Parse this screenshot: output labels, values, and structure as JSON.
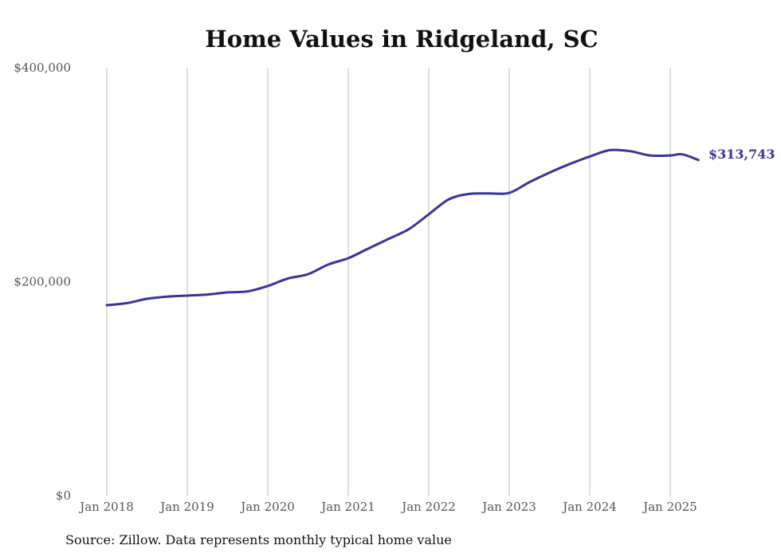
{
  "chart_data": {
    "type": "line",
    "title": "Home Values in Ridgeland, SC",
    "xlabel": "",
    "ylabel": "",
    "ylim": [
      0,
      400000
    ],
    "yticks": [
      {
        "value": 0,
        "label": "$0"
      },
      {
        "value": 200000,
        "label": "$200,000"
      },
      {
        "value": 400000,
        "label": "$400,000"
      }
    ],
    "xticks": [
      {
        "value": 2018.0,
        "label": "Jan 2018"
      },
      {
        "value": 2019.0,
        "label": "Jan 2019"
      },
      {
        "value": 2020.0,
        "label": "Jan 2020"
      },
      {
        "value": 2021.0,
        "label": "Jan 2021"
      },
      {
        "value": 2022.0,
        "label": "Jan 2022"
      },
      {
        "value": 2023.0,
        "label": "Jan 2023"
      },
      {
        "value": 2024.0,
        "label": "Jan 2024"
      },
      {
        "value": 2025.0,
        "label": "Jan 2025"
      }
    ],
    "xlim": [
      2018.0,
      2025.4
    ],
    "grid": "vertical",
    "line_color": "#3b3494",
    "series": [
      {
        "points": [
          [
            2018.0,
            178000
          ],
          [
            2018.25,
            180000
          ],
          [
            2018.5,
            184000
          ],
          [
            2018.75,
            186000
          ],
          [
            2019.0,
            187000
          ],
          [
            2019.25,
            188000
          ],
          [
            2019.5,
            190000
          ],
          [
            2019.75,
            191000
          ],
          [
            2020.0,
            196000
          ],
          [
            2020.25,
            203000
          ],
          [
            2020.5,
            207000
          ],
          [
            2020.75,
            216000
          ],
          [
            2021.0,
            222000
          ],
          [
            2021.25,
            231000
          ],
          [
            2021.5,
            240000
          ],
          [
            2021.75,
            249000
          ],
          [
            2022.0,
            263000
          ],
          [
            2022.25,
            277000
          ],
          [
            2022.5,
            282000
          ],
          [
            2022.75,
            282500
          ],
          [
            2023.0,
            283000
          ],
          [
            2023.25,
            293000
          ],
          [
            2023.5,
            302000
          ],
          [
            2023.75,
            310000
          ],
          [
            2024.0,
            317000
          ],
          [
            2024.25,
            323000
          ],
          [
            2024.5,
            322000
          ],
          [
            2024.75,
            318000
          ],
          [
            2025.0,
            318000
          ],
          [
            2025.15,
            319000
          ],
          [
            2025.35,
            313743
          ]
        ]
      }
    ],
    "end_label": "$313,743",
    "source": "Source: Zillow. Data represents monthly typical home value"
  }
}
